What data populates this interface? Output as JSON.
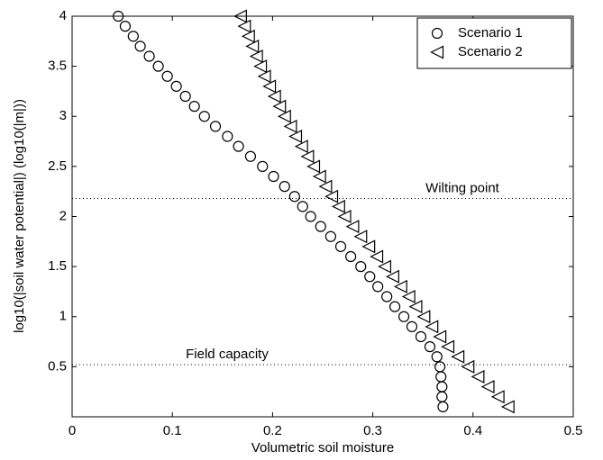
{
  "chart_data": {
    "type": "scatter",
    "xlabel": "Volumetric soil moisture",
    "ylabel": "log10(|soil water potential|) (log10(|m|))",
    "xlim": [
      0,
      0.5
    ],
    "ylim": [
      0,
      4
    ],
    "xticks": [
      0,
      0.1,
      0.2,
      0.3,
      0.4,
      0.5
    ],
    "yticks": [
      0.5,
      1,
      1.5,
      2,
      2.5,
      3,
      3.5,
      4
    ],
    "legend": "upper-right",
    "annotations": [
      {
        "text": "Wilting point",
        "y": 2.18
      },
      {
        "text": "Field capacity",
        "y": 0.52
      }
    ],
    "series": [
      {
        "name": "Scenario 1",
        "marker": "circle",
        "color": "#000000",
        "x": [
          0.046,
          0.053,
          0.061,
          0.068,
          0.077,
          0.086,
          0.095,
          0.104,
          0.113,
          0.122,
          0.132,
          0.143,
          0.155,
          0.166,
          0.178,
          0.19,
          0.201,
          0.212,
          0.222,
          0.23,
          0.238,
          0.248,
          0.258,
          0.268,
          0.278,
          0.288,
          0.297,
          0.305,
          0.314,
          0.322,
          0.331,
          0.339,
          0.348,
          0.357,
          0.364,
          0.367,
          0.368,
          0.369,
          0.369,
          0.37
        ],
        "y": [
          4,
          3.9,
          3.8,
          3.7,
          3.6,
          3.5,
          3.4,
          3.3,
          3.2,
          3.1,
          3,
          2.9,
          2.8,
          2.7,
          2.6,
          2.5,
          2.4,
          2.3,
          2.2,
          2.1,
          2,
          1.9,
          1.8,
          1.7,
          1.6,
          1.5,
          1.4,
          1.3,
          1.2,
          1.1,
          1,
          0.9,
          0.8,
          0.7,
          0.6,
          0.5,
          0.4,
          0.3,
          0.2,
          0.1
        ]
      },
      {
        "name": "Scenario 2",
        "marker": "triangle-left",
        "color": "#000000",
        "x": [
          0.168,
          0.172,
          0.176,
          0.18,
          0.184,
          0.188,
          0.192,
          0.197,
          0.202,
          0.207,
          0.212,
          0.218,
          0.223,
          0.229,
          0.235,
          0.241,
          0.247,
          0.253,
          0.259,
          0.266,
          0.272,
          0.28,
          0.288,
          0.296,
          0.304,
          0.312,
          0.32,
          0.328,
          0.336,
          0.343,
          0.351,
          0.359,
          0.367,
          0.375,
          0.385,
          0.395,
          0.405,
          0.415,
          0.425,
          0.435
        ],
        "y": [
          4,
          3.9,
          3.8,
          3.7,
          3.6,
          3.5,
          3.4,
          3.3,
          3.2,
          3.1,
          3,
          2.9,
          2.8,
          2.7,
          2.6,
          2.5,
          2.4,
          2.3,
          2.2,
          2.1,
          2,
          1.9,
          1.8,
          1.7,
          1.6,
          1.5,
          1.4,
          1.3,
          1.2,
          1.1,
          1,
          0.9,
          0.8,
          0.7,
          0.6,
          0.5,
          0.4,
          0.3,
          0.2,
          0.1
        ]
      }
    ]
  }
}
